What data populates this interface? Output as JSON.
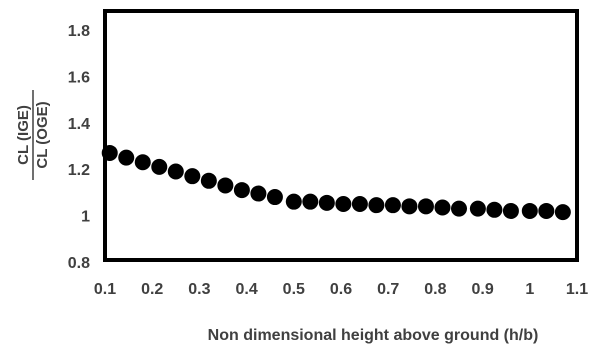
{
  "chart_data": {
    "type": "scatter",
    "title": "",
    "xlabel": "Non dimensional height above ground (h/b)",
    "ylabel_numerator": "CL (IGE)",
    "ylabel_denominator": "CL (OGE)",
    "xlim": [
      0.1,
      1.1
    ],
    "ylim": [
      0.8,
      1.9
    ],
    "x_ticks": [
      "0.1",
      "0.2",
      "0.3",
      "0.4",
      "0.5",
      "0.6",
      "0.7",
      "0.8",
      "0.9",
      "1",
      "1.1"
    ],
    "y_ticks": [
      "0.8",
      "1",
      "1.2",
      "1.4",
      "1.6",
      "1.8"
    ],
    "grid": false,
    "marker_color": "#000000",
    "series": [
      {
        "x": [
          0.11,
          0.145,
          0.18,
          0.215,
          0.25,
          0.285,
          0.32,
          0.355,
          0.39,
          0.425,
          0.46,
          0.5,
          0.535,
          0.57,
          0.605,
          0.64,
          0.675,
          0.71,
          0.745,
          0.78,
          0.815,
          0.85,
          0.89,
          0.925,
          0.96,
          1.0,
          1.035,
          1.07
        ],
        "y": [
          1.27,
          1.25,
          1.23,
          1.21,
          1.19,
          1.17,
          1.15,
          1.13,
          1.11,
          1.095,
          1.08,
          1.06,
          1.06,
          1.055,
          1.05,
          1.05,
          1.045,
          1.045,
          1.04,
          1.04,
          1.035,
          1.03,
          1.03,
          1.025,
          1.02,
          1.02,
          1.02,
          1.015
        ]
      }
    ]
  }
}
